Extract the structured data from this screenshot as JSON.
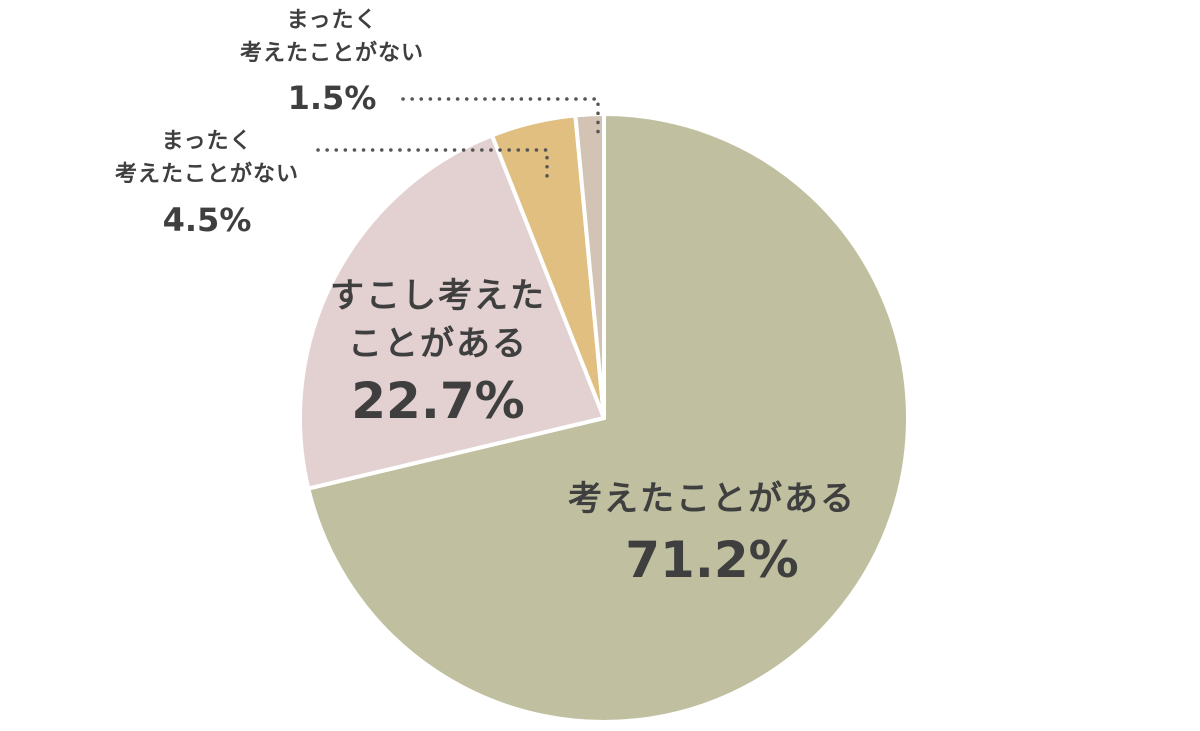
{
  "chart_data": {
    "type": "pie",
    "start": "12 o'clock",
    "direction": "clockwise",
    "slices": [
      {
        "label_lines": [
          "考えたことがある"
        ],
        "value": 71.2,
        "value_label": "71.2%",
        "color": "#c0c0a0"
      },
      {
        "label_lines": [
          "すこし考えた",
          "ことがある"
        ],
        "value": 22.7,
        "value_label": "22.7%",
        "color": "#e3d1d1"
      },
      {
        "label_lines": [
          "まったく",
          "考えたことがない"
        ],
        "value": 4.5,
        "value_label": "4.5%",
        "color": "#e0bf80"
      },
      {
        "label_lines": [
          "まったく",
          "考えたことがない"
        ],
        "value": 1.5,
        "value_label": "1.5%",
        "color": "#d2c3b4"
      }
    ],
    "separator_color": "#ffffff"
  }
}
